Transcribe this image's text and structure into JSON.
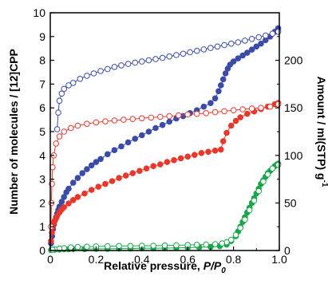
{
  "chart_data": {
    "type": "scatter",
    "xlabel": "Relative pressure, P/P0",
    "xlabel_parts": {
      "main": "Relative pressure, ",
      "italic": "P/P",
      "sub": "0"
    },
    "ylabel_left": "Number of molecules / [12]CPP",
    "ylabel_right": "Amount / ml(STP) g-1",
    "ylabel_right_parts": {
      "main": "Amount / ml(STP) g",
      "sup": "-1"
    },
    "xlim": [
      0,
      1.0
    ],
    "ylim_left": [
      0,
      10
    ],
    "ylim_right": [
      0,
      250
    ],
    "x_ticks": [
      "0",
      "0.2",
      "0.4",
      "0.6",
      "0.8",
      "1.0"
    ],
    "y_ticks_left": [
      "0",
      "1",
      "2",
      "3",
      "4",
      "5",
      "6",
      "7",
      "8",
      "9",
      "10"
    ],
    "y_ticks_right": [
      "0",
      "50",
      "100",
      "150",
      "200"
    ],
    "grid": false,
    "legend": "none",
    "series": [
      {
        "color": "#3b4ba8",
        "marker": "filled",
        "curve": "adsorption",
        "x": [
          0.003,
          0.008,
          0.012,
          0.016,
          0.02,
          0.025,
          0.03,
          0.035,
          0.04,
          0.05,
          0.06,
          0.07,
          0.08,
          0.1,
          0.12,
          0.14,
          0.16,
          0.18,
          0.2,
          0.22,
          0.25,
          0.28,
          0.31,
          0.34,
          0.37,
          0.4,
          0.43,
          0.46,
          0.49,
          0.52,
          0.55,
          0.58,
          0.61,
          0.64,
          0.67,
          0.7,
          0.72,
          0.735,
          0.745,
          0.755,
          0.765,
          0.775,
          0.785,
          0.8,
          0.82,
          0.84,
          0.86,
          0.88,
          0.9,
          0.92,
          0.94,
          0.96,
          0.98,
          0.995
        ],
        "y": [
          0.3,
          0.6,
          0.9,
          1.1,
          1.25,
          1.4,
          1.55,
          1.7,
          1.85,
          2.05,
          2.25,
          2.45,
          2.6,
          2.85,
          3.05,
          3.25,
          3.42,
          3.58,
          3.72,
          3.85,
          4.05,
          4.22,
          4.38,
          4.55,
          4.7,
          4.85,
          5.0,
          5.15,
          5.28,
          5.42,
          5.55,
          5.65,
          5.78,
          5.9,
          6.05,
          6.2,
          6.4,
          6.7,
          6.95,
          7.2,
          7.45,
          7.65,
          7.82,
          7.95,
          8.08,
          8.2,
          8.32,
          8.45,
          8.58,
          8.7,
          8.85,
          9.0,
          9.2,
          9.35
        ]
      },
      {
        "color": "#3b4ba8",
        "marker": "open",
        "curve": "desorption",
        "x": [
          0.995,
          0.97,
          0.94,
          0.91,
          0.88,
          0.85,
          0.82,
          0.79,
          0.76,
          0.73,
          0.7,
          0.67,
          0.64,
          0.61,
          0.58,
          0.55,
          0.52,
          0.49,
          0.46,
          0.43,
          0.4,
          0.37,
          0.34,
          0.31,
          0.28,
          0.25,
          0.22,
          0.19,
          0.16,
          0.13,
          0.1,
          0.08,
          0.06,
          0.05,
          0.04,
          0.035,
          0.03
        ],
        "y": [
          9.2,
          9.12,
          9.04,
          8.97,
          8.9,
          8.83,
          8.76,
          8.7,
          8.64,
          8.58,
          8.52,
          8.46,
          8.4,
          8.34,
          8.28,
          8.22,
          8.16,
          8.1,
          8.05,
          8.0,
          7.95,
          7.9,
          7.85,
          7.79,
          7.72,
          7.63,
          7.55,
          7.45,
          7.35,
          7.22,
          7.05,
          6.95,
          6.8,
          6.6,
          6.3,
          5.8,
          5.1
        ]
      },
      {
        "color": "#e8382c",
        "marker": "filled",
        "curve": "adsorption",
        "x": [
          0.003,
          0.007,
          0.011,
          0.015,
          0.02,
          0.025,
          0.03,
          0.04,
          0.05,
          0.06,
          0.08,
          0.1,
          0.12,
          0.15,
          0.18,
          0.21,
          0.24,
          0.27,
          0.3,
          0.33,
          0.36,
          0.39,
          0.42,
          0.45,
          0.48,
          0.51,
          0.54,
          0.57,
          0.6,
          0.63,
          0.66,
          0.69,
          0.72,
          0.745,
          0.755,
          0.77,
          0.79,
          0.81,
          0.83,
          0.86,
          0.89,
          0.92,
          0.95,
          0.98,
          0.995
        ],
        "y": [
          0.4,
          0.75,
          1.0,
          1.15,
          1.25,
          1.35,
          1.45,
          1.6,
          1.72,
          1.82,
          1.98,
          2.12,
          2.25,
          2.4,
          2.55,
          2.68,
          2.8,
          2.92,
          3.05,
          3.15,
          3.25,
          3.35,
          3.45,
          3.55,
          3.62,
          3.72,
          3.8,
          3.88,
          3.95,
          4.02,
          4.1,
          4.15,
          4.2,
          4.25,
          4.6,
          4.95,
          5.25,
          5.45,
          5.6,
          5.75,
          5.85,
          5.95,
          6.05,
          6.15,
          6.2
        ]
      },
      {
        "color": "#e8382c",
        "marker": "open",
        "curve": "desorption",
        "x": [
          0.995,
          0.96,
          0.92,
          0.88,
          0.84,
          0.8,
          0.76,
          0.72,
          0.68,
          0.64,
          0.6,
          0.56,
          0.52,
          0.48,
          0.44,
          0.4,
          0.36,
          0.32,
          0.28,
          0.24,
          0.2,
          0.16,
          0.12,
          0.09,
          0.06,
          0.04,
          0.025,
          0.015,
          0.01,
          0.007,
          0.005,
          0.003
        ],
        "y": [
          6.15,
          6.05,
          6.0,
          5.97,
          5.94,
          5.9,
          5.86,
          5.82,
          5.78,
          5.75,
          5.72,
          5.68,
          5.65,
          5.62,
          5.59,
          5.56,
          5.53,
          5.5,
          5.47,
          5.43,
          5.39,
          5.33,
          5.25,
          5.15,
          5.0,
          4.8,
          4.5,
          4.0,
          3.5,
          2.8,
          2.0,
          1.0
        ]
      },
      {
        "color": "#1aa64a",
        "marker": "filled",
        "curve": "adsorption",
        "x": [
          0.003,
          0.02,
          0.04,
          0.06,
          0.08,
          0.1,
          0.15,
          0.2,
          0.25,
          0.3,
          0.35,
          0.4,
          0.45,
          0.5,
          0.55,
          0.6,
          0.65,
          0.7,
          0.74,
          0.77,
          0.79,
          0.81,
          0.82,
          0.83,
          0.84,
          0.85,
          0.86,
          0.87,
          0.88,
          0.89,
          0.9,
          0.91,
          0.92,
          0.93,
          0.94,
          0.95,
          0.96,
          0.97,
          0.98,
          0.99,
          0.995
        ],
        "y": [
          0.02,
          0.03,
          0.04,
          0.05,
          0.05,
          0.06,
          0.06,
          0.07,
          0.07,
          0.08,
          0.08,
          0.09,
          0.09,
          0.1,
          0.11,
          0.12,
          0.13,
          0.15,
          0.18,
          0.25,
          0.4,
          0.6,
          0.8,
          1.0,
          1.2,
          1.4,
          1.6,
          1.8,
          2.0,
          2.2,
          2.4,
          2.6,
          2.8,
          2.95,
          3.1,
          3.25,
          3.35,
          3.45,
          3.55,
          3.62,
          3.65
        ]
      },
      {
        "color": "#1aa64a",
        "marker": "open",
        "curve": "desorption",
        "x": [
          0.995,
          0.97,
          0.95,
          0.93,
          0.91,
          0.89,
          0.87,
          0.85,
          0.83,
          0.81,
          0.79,
          0.77,
          0.75,
          0.72,
          0.68,
          0.64,
          0.6,
          0.55,
          0.5,
          0.45,
          0.4,
          0.35,
          0.3,
          0.25,
          0.2,
          0.16,
          0.12,
          0.09,
          0.06,
          0.04,
          0.02,
          0.01
        ],
        "y": [
          3.6,
          3.45,
          3.2,
          2.9,
          2.5,
          2.1,
          1.7,
          1.3,
          0.95,
          0.65,
          0.45,
          0.35,
          0.3,
          0.27,
          0.25,
          0.24,
          0.23,
          0.22,
          0.21,
          0.2,
          0.2,
          0.19,
          0.19,
          0.18,
          0.17,
          0.16,
          0.15,
          0.13,
          0.1,
          0.08,
          0.05,
          0.03
        ]
      }
    ]
  }
}
